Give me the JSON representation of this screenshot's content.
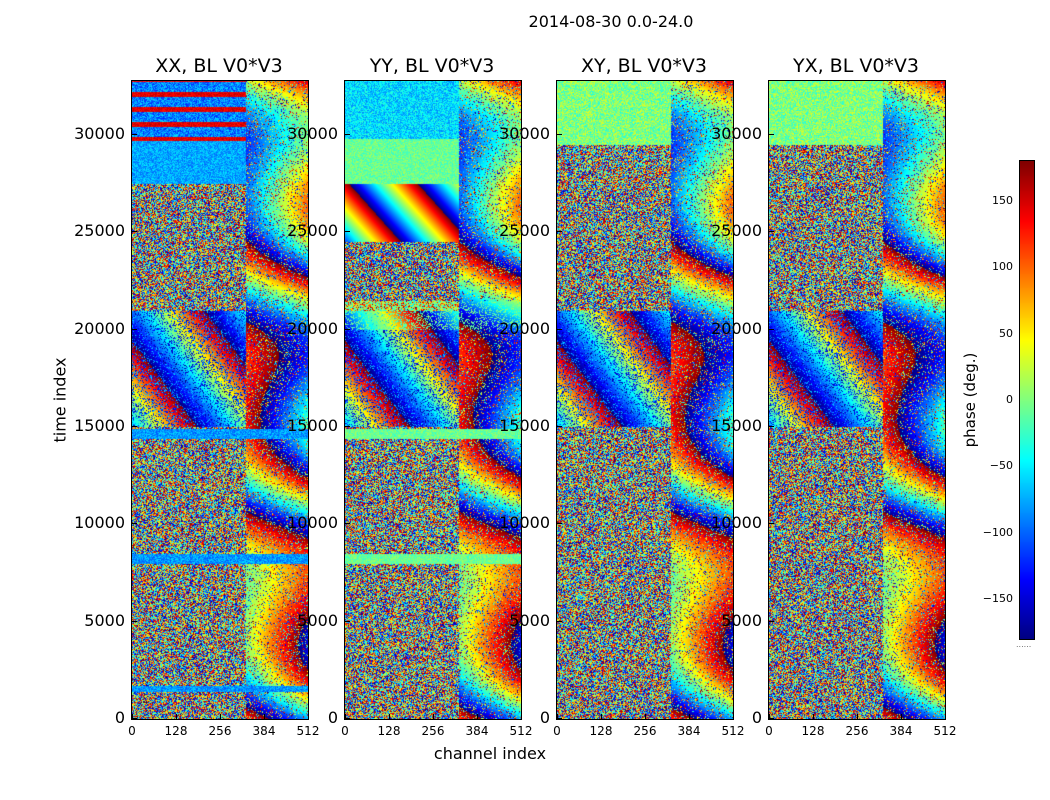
{
  "suptitle": "2014-08-30 0.0-24.0",
  "xlabel": "channel index",
  "ylabel": "time index",
  "colorbar": {
    "label": "phase (deg.)",
    "ticks": [
      "150",
      "100",
      "50",
      "0",
      "−50",
      "−100",
      "−150"
    ],
    "tick_values": [
      150,
      100,
      50,
      0,
      -50,
      -100,
      -150
    ],
    "range": [
      -180,
      180
    ],
    "colormap": "jet",
    "footer": "......"
  },
  "chart_data": {
    "type": "heatmap",
    "x_ticks": [
      "0",
      "128",
      "256",
      "384",
      "512"
    ],
    "y_ticks": [
      "0",
      "5000",
      "10000",
      "15000",
      "20000",
      "25000",
      "30000"
    ],
    "xlim": [
      0,
      512
    ],
    "ylim": [
      0,
      32768
    ],
    "value_range": [
      -180,
      180
    ],
    "panels": [
      {
        "title": "XX, BL V0*V3",
        "seed": 11,
        "mode": "XX"
      },
      {
        "title": "YY, BL V0*V3",
        "seed": 23,
        "mode": "YY"
      },
      {
        "title": "XY, BL V0*V3",
        "seed": 37,
        "mode": "XY"
      },
      {
        "title": "YX, BL V0*V3",
        "seed": 51,
        "mode": "YX"
      }
    ]
  }
}
